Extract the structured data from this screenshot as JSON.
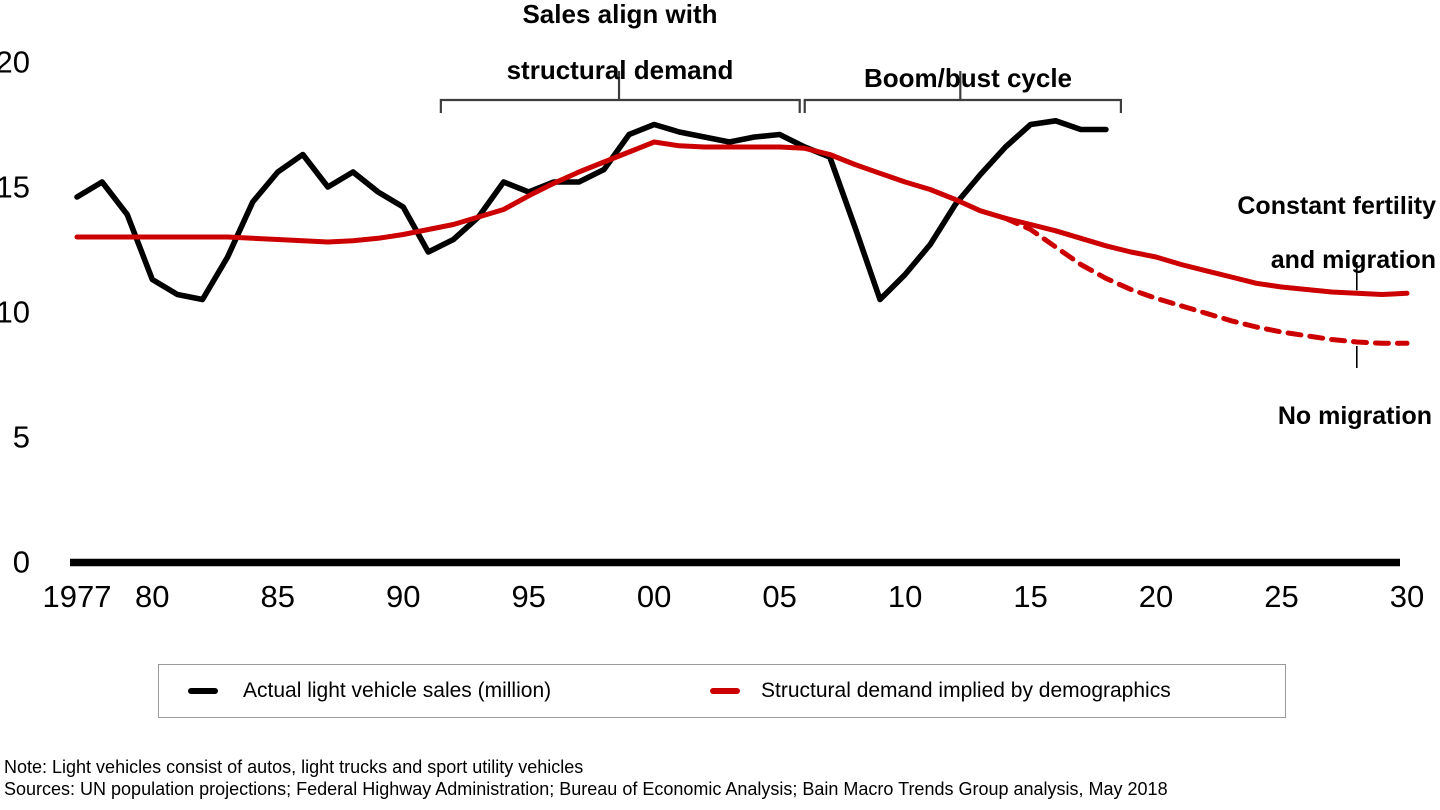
{
  "chart_data": {
    "type": "line",
    "title": "",
    "xlabel": "",
    "ylabel": "",
    "x_range": [
      1977,
      2030
    ],
    "ylim": [
      0,
      20
    ],
    "grid": false,
    "legend_position": "bottom",
    "y_ticks": [
      0,
      5,
      10,
      15,
      20
    ],
    "x_ticks": [
      {
        "year": 1977,
        "label": "1977"
      },
      {
        "year": 1980,
        "label": "80"
      },
      {
        "year": 1985,
        "label": "85"
      },
      {
        "year": 1990,
        "label": "90"
      },
      {
        "year": 1995,
        "label": "95"
      },
      {
        "year": 2000,
        "label": "00"
      },
      {
        "year": 2005,
        "label": "05"
      },
      {
        "year": 2010,
        "label": "10"
      },
      {
        "year": 2015,
        "label": "15"
      },
      {
        "year": 2020,
        "label": "20"
      },
      {
        "year": 2025,
        "label": "25"
      },
      {
        "year": 2030,
        "label": "30"
      }
    ],
    "series": [
      {
        "name": "Actual light vehicle sales (million)",
        "color": "#000000",
        "style": "solid",
        "start_year": 1977,
        "values": [
          14.6,
          15.2,
          13.9,
          11.3,
          10.7,
          10.5,
          12.2,
          14.4,
          15.6,
          16.3,
          15.0,
          15.6,
          14.8,
          14.2,
          12.4,
          12.9,
          13.8,
          15.2,
          14.8,
          15.2,
          15.2,
          15.7,
          17.1,
          17.5,
          17.2,
          17.0,
          16.8,
          17.0,
          17.1,
          16.6,
          16.2,
          13.4,
          10.5,
          11.5,
          12.7,
          14.3,
          15.5,
          16.6,
          17.5,
          17.65,
          17.3,
          17.3
        ]
      },
      {
        "name": "Structural demand implied by demographics (constant fertility and migration)",
        "color": "#cc0000",
        "style": "solid",
        "start_year": 1977,
        "values": [
          13.0,
          13.0,
          13.0,
          13.0,
          13.0,
          13.0,
          13.0,
          12.95,
          12.9,
          12.85,
          12.8,
          12.85,
          12.95,
          13.1,
          13.3,
          13.5,
          13.8,
          14.1,
          14.65,
          15.15,
          15.6,
          16.0,
          16.4,
          16.8,
          16.65,
          16.6,
          16.6,
          16.6,
          16.6,
          16.55,
          16.3,
          15.9,
          15.55,
          15.2,
          14.9,
          14.5,
          14.05,
          13.75,
          13.5,
          13.25,
          12.95,
          12.65,
          12.4,
          12.2,
          11.9,
          11.65,
          11.4,
          11.15,
          11.0,
          10.9,
          10.8,
          10.75,
          10.7,
          10.75
        ]
      },
      {
        "name": "Structural demand, no migration scenario",
        "color": "#cc0000",
        "style": "dashed",
        "start_year": 2014,
        "values": [
          13.75,
          13.3,
          12.6,
          11.9,
          11.35,
          10.9,
          10.55,
          10.25,
          9.95,
          9.65,
          9.4,
          9.2,
          9.05,
          8.9,
          8.8,
          8.75,
          8.75
        ]
      }
    ]
  },
  "annotations": {
    "bracket1": {
      "label_line1": "Sales align with",
      "label_line2": "structural demand",
      "from_year": 1991.5,
      "to_year": 2005.8,
      "tick_year": 1998.6
    },
    "bracket2": {
      "label": "Boom/bust cycle",
      "from_year": 2006.0,
      "to_year": 2018.6,
      "tick_year": 2012.2
    },
    "constant_fertility": {
      "line1": "Constant fertility",
      "line2": "and migration",
      "pointer_year": 2028
    },
    "no_migration": {
      "label": "No migration",
      "pointer_year": 2028
    }
  },
  "legend": {
    "items": [
      {
        "label": "Actual light vehicle sales (million)",
        "color": "#000000"
      },
      {
        "label": "Structural demand implied by demographics",
        "color": "#cc0000"
      }
    ]
  },
  "notes": {
    "note": "Note: Light vehicles consist of autos, light trucks and sport utility vehicles",
    "sources": "Sources: UN population projections; Federal Highway Administration; Bureau of Economic Analysis; Bain Macro Trends Group analysis, May 2018"
  },
  "colors": {
    "accent_red": "#cc0000",
    "bracket_gray": "#3d3d3d",
    "axis_black": "#000000"
  }
}
